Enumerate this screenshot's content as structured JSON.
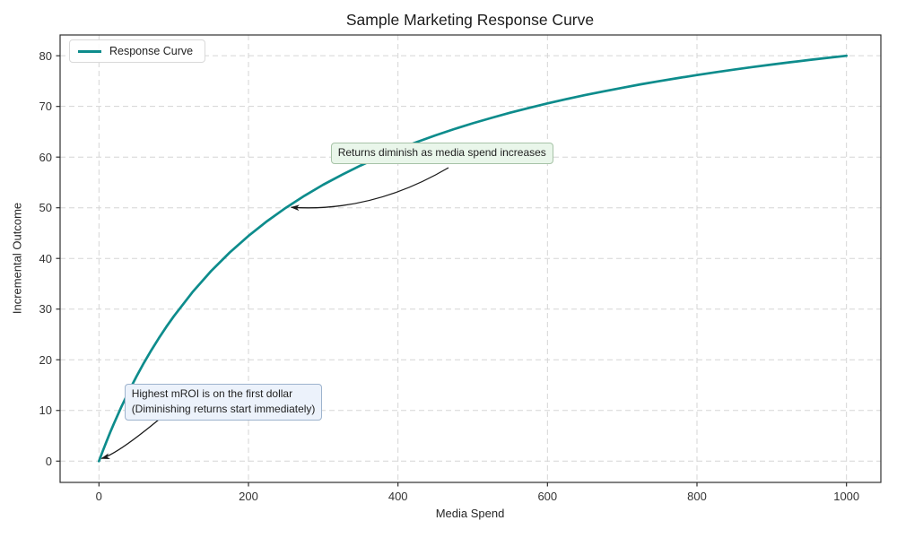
{
  "chart_data": {
    "type": "line",
    "title": "Sample Marketing Response Curve",
    "xlabel": "Media Spend",
    "ylabel": "Incremental Outcome",
    "xlim": [
      -52,
      1046
    ],
    "ylim": [
      -4.2,
      84.1
    ],
    "xticks": [
      0,
      200,
      400,
      600,
      800,
      1000
    ],
    "yticks": [
      0,
      10,
      20,
      30,
      40,
      50,
      60,
      70,
      80
    ],
    "grid": true,
    "grid_style": "dashed",
    "legend": {
      "position": "upper left",
      "entries": [
        {
          "label": "Response Curve",
          "color": "#0d8c8c"
        }
      ]
    },
    "series": [
      {
        "name": "Response Curve",
        "color": "#0d8c8c",
        "points": [
          [
            0,
            0
          ],
          [
            5,
            1.96
          ],
          [
            10,
            3.85
          ],
          [
            15,
            5.66
          ],
          [
            20,
            7.41
          ],
          [
            30,
            10.71
          ],
          [
            40,
            13.79
          ],
          [
            50,
            16.67
          ],
          [
            60,
            19.35
          ],
          [
            70,
            21.88
          ],
          [
            80,
            24.24
          ],
          [
            90,
            26.47
          ],
          [
            100,
            28.57
          ],
          [
            125,
            33.33
          ],
          [
            150,
            37.5
          ],
          [
            175,
            41.18
          ],
          [
            200,
            44.44
          ],
          [
            225,
            47.37
          ],
          [
            250,
            50.0
          ],
          [
            275,
            52.38
          ],
          [
            300,
            54.55
          ],
          [
            325,
            56.52
          ],
          [
            350,
            58.33
          ],
          [
            375,
            60.0
          ],
          [
            400,
            61.54
          ],
          [
            425,
            62.96
          ],
          [
            450,
            64.29
          ],
          [
            475,
            65.52
          ],
          [
            500,
            66.67
          ],
          [
            525,
            67.74
          ],
          [
            550,
            68.75
          ],
          [
            575,
            69.7
          ],
          [
            600,
            70.59
          ],
          [
            625,
            71.43
          ],
          [
            650,
            72.22
          ],
          [
            675,
            72.97
          ],
          [
            700,
            73.68
          ],
          [
            725,
            74.36
          ],
          [
            750,
            75.0
          ],
          [
            775,
            75.61
          ],
          [
            800,
            76.19
          ],
          [
            825,
            76.74
          ],
          [
            850,
            77.27
          ],
          [
            875,
            77.78
          ],
          [
            900,
            78.26
          ],
          [
            925,
            78.72
          ],
          [
            950,
            79.17
          ],
          [
            975,
            79.59
          ],
          [
            1000,
            80.0
          ]
        ]
      }
    ],
    "annotations": [
      {
        "text": "Returns diminish as media spend increases",
        "xy": [
          250,
          50
        ],
        "xytext": [
          310,
          62.8
        ],
        "style": "green"
      },
      {
        "text": "Highest mROI is on the first dollar\n(Diminishing returns start immediately)",
        "xy": [
          0,
          0
        ],
        "xytext": [
          34,
          15.2
        ],
        "style": "blue"
      }
    ],
    "colors": {
      "curve": "#0d8c8c",
      "grid": "#d5d5d5",
      "spine": "#2f2f2f",
      "arrow": "#1a1a1a",
      "annotation_green_bg": "#e9f6ea",
      "annotation_green_border": "#a7c3a7",
      "annotation_blue_bg": "#ecf2fb",
      "annotation_blue_border": "#9db3cd"
    }
  }
}
